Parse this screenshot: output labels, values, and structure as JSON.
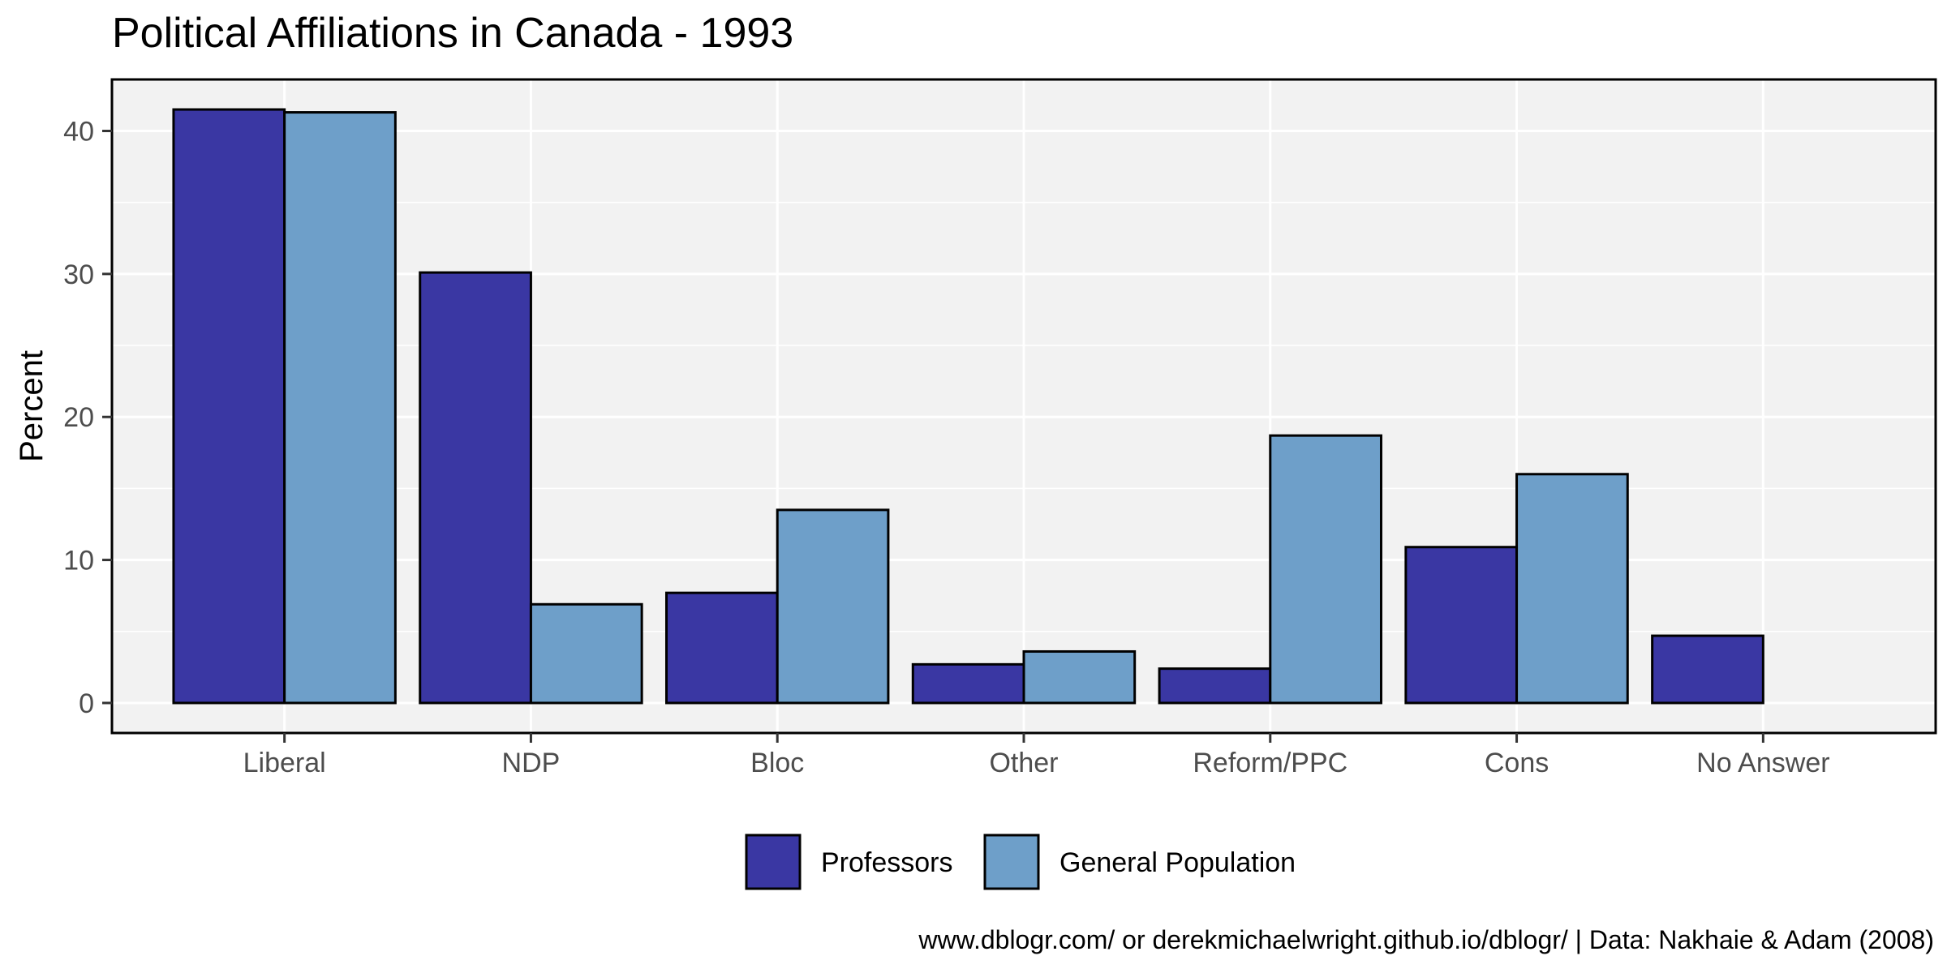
{
  "chart_data": {
    "type": "bar",
    "title": "Political Affiliations in Canada - 1993",
    "xlabel": "",
    "ylabel": "Percent",
    "categories": [
      "Liberal",
      "NDP",
      "Bloc",
      "Other",
      "Reform/PPC",
      "Cons",
      "No Answer"
    ],
    "series": [
      {
        "name": "Professors",
        "color": "#3a37a3",
        "values": [
          41.5,
          30.1,
          7.7,
          2.7,
          2.4,
          10.9,
          4.7
        ]
      },
      {
        "name": "General Population",
        "color": "#6e9fc9",
        "values": [
          41.3,
          6.9,
          13.5,
          3.6,
          18.7,
          16.0,
          null
        ]
      }
    ],
    "yticks": [
      0,
      10,
      20,
      30,
      40
    ],
    "ylim": [
      -2.1,
      43.6
    ],
    "grid": true,
    "legend_position": "bottom",
    "caption": "www.dblogr.com/ or derekmichaelwright.github.io/dblogr/ | Data: Nakhaie & Adam (2008)",
    "colors": {
      "panel_background": "#f2f2f2",
      "grid": "#ffffff",
      "border": "#000000"
    }
  }
}
